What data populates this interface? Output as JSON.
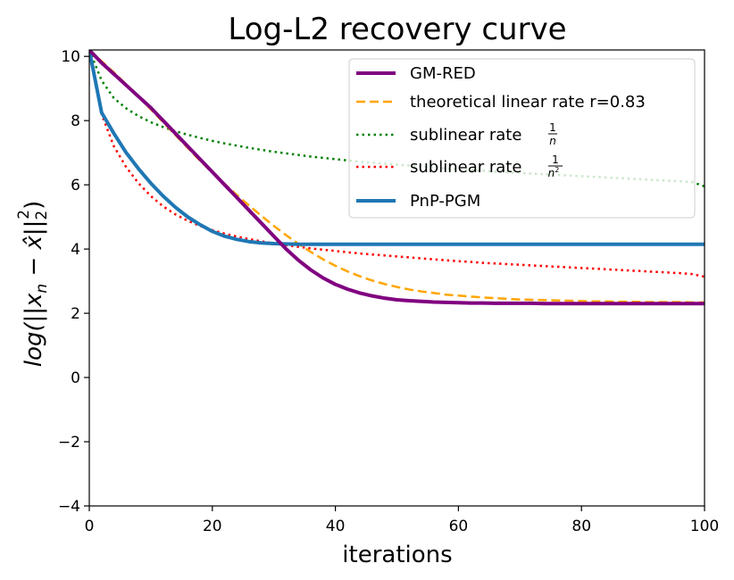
{
  "chart_data": {
    "type": "line",
    "title": "Log-L2 recovery curve",
    "xlabel": "iterations",
    "ylabel_main": "log(||x",
    "ylabel_sub_n": "n",
    "ylabel_mid": " − x̂||",
    "ylabel_sub_2": "2",
    "ylabel_sup_2": "2",
    "ylabel_close": ")",
    "xlim": [
      0,
      100
    ],
    "ylim": [
      -4,
      10.2
    ],
    "xticks": [
      0,
      20,
      40,
      60,
      80,
      100
    ],
    "xtick_labels": [
      "0",
      "20",
      "40",
      "60",
      "80",
      "100"
    ],
    "yticks": [
      -4,
      -2,
      0,
      2,
      4,
      6,
      8,
      10
    ],
    "ytick_labels": [
      "−4",
      "−2",
      "0",
      "2",
      "4",
      "6",
      "8",
      "10"
    ],
    "grid": false,
    "legend_position": "top-right",
    "x": [
      0,
      2,
      4,
      6,
      8,
      10,
      12,
      14,
      16,
      18,
      20,
      22,
      24,
      26,
      28,
      30,
      32,
      34,
      36,
      38,
      40,
      42,
      44,
      46,
      48,
      50,
      52,
      54,
      56,
      58,
      60,
      62,
      64,
      66,
      68,
      70,
      72,
      74,
      76,
      78,
      80,
      82,
      84,
      86,
      88,
      90,
      92,
      94,
      96,
      98,
      100
    ],
    "series": [
      {
        "name": "GM-RED",
        "color": "#800080",
        "style": "solid",
        "values": [
          10.2,
          9.8,
          9.45,
          9.1,
          8.75,
          8.4,
          8.0,
          7.6,
          7.2,
          6.8,
          6.4,
          6.0,
          5.6,
          5.2,
          4.8,
          4.4,
          4.0,
          3.65,
          3.35,
          3.1,
          2.9,
          2.75,
          2.63,
          2.54,
          2.47,
          2.42,
          2.39,
          2.37,
          2.35,
          2.34,
          2.33,
          2.32,
          2.32,
          2.31,
          2.31,
          2.31,
          2.31,
          2.3,
          2.3,
          2.3,
          2.3,
          2.3,
          2.3,
          2.3,
          2.3,
          2.3,
          2.3,
          2.3,
          2.3,
          2.3,
          2.3
        ]
      },
      {
        "name": "theoretical linear rate r=0.83",
        "label_main": "theoretical linear rate r=0.83",
        "color": "#ffa500",
        "style": "dashed",
        "values": [
          10.2,
          9.85,
          9.5,
          9.13,
          8.75,
          8.35,
          7.95,
          7.55,
          7.15,
          6.75,
          6.38,
          6.03,
          5.68,
          5.35,
          5.03,
          4.72,
          4.43,
          4.16,
          3.91,
          3.68,
          3.48,
          3.3,
          3.15,
          3.02,
          2.91,
          2.82,
          2.74,
          2.68,
          2.63,
          2.58,
          2.55,
          2.52,
          2.49,
          2.47,
          2.45,
          2.43,
          2.42,
          2.41,
          2.4,
          2.39,
          2.38,
          2.37,
          2.37,
          2.36,
          2.36,
          2.35,
          2.35,
          2.35,
          2.35,
          2.34,
          2.34
        ]
      },
      {
        "name": "sublinear rate 1/n",
        "label_main": "sublinear rate",
        "label_num": "1",
        "label_den": "n",
        "color": "#008000",
        "style": "dotted",
        "values": [
          10.2,
          9.25,
          8.7,
          8.38,
          8.14,
          7.95,
          7.8,
          7.67,
          7.56,
          7.46,
          7.37,
          7.29,
          7.22,
          7.15,
          7.09,
          7.03,
          6.98,
          6.93,
          6.88,
          6.84,
          6.8,
          6.76,
          6.72,
          6.69,
          6.66,
          6.63,
          6.6,
          6.57,
          6.54,
          6.51,
          6.48,
          6.46,
          6.44,
          6.41,
          6.39,
          6.37,
          6.35,
          6.33,
          6.31,
          6.29,
          6.27,
          6.25,
          6.23,
          6.21,
          6.19,
          6.17,
          6.15,
          6.13,
          6.11,
          6.09,
          5.95
        ]
      },
      {
        "name": "sublinear rate 1/n^2",
        "label_main": "sublinear rate",
        "label_num": "1",
        "label_den": "n",
        "label_den_sup": "2",
        "color": "#ff0000",
        "style": "dotted",
        "values": [
          10.2,
          8.2,
          7.2,
          6.55,
          6.05,
          5.65,
          5.33,
          5.08,
          4.88,
          4.72,
          4.59,
          4.48,
          4.39,
          4.31,
          4.24,
          4.18,
          4.12,
          4.07,
          4.02,
          3.98,
          3.94,
          3.9,
          3.86,
          3.83,
          3.8,
          3.77,
          3.74,
          3.71,
          3.68,
          3.65,
          3.62,
          3.6,
          3.57,
          3.55,
          3.53,
          3.51,
          3.49,
          3.47,
          3.45,
          3.43,
          3.41,
          3.39,
          3.37,
          3.35,
          3.33,
          3.31,
          3.29,
          3.27,
          3.25,
          3.22,
          3.14
        ]
      },
      {
        "name": "PnP-PGM",
        "color": "#1f77b4",
        "style": "solid",
        "values": [
          10.2,
          8.25,
          7.6,
          7.0,
          6.5,
          6.05,
          5.65,
          5.3,
          5.0,
          4.76,
          4.55,
          4.4,
          4.3,
          4.23,
          4.19,
          4.17,
          4.16,
          4.15,
          4.15,
          4.15,
          4.15,
          4.15,
          4.15,
          4.15,
          4.15,
          4.15,
          4.15,
          4.15,
          4.15,
          4.15,
          4.15,
          4.15,
          4.15,
          4.15,
          4.15,
          4.15,
          4.15,
          4.15,
          4.15,
          4.15,
          4.15,
          4.15,
          4.15,
          4.15,
          4.15,
          4.15,
          4.15,
          4.15,
          4.15,
          4.15,
          4.15
        ]
      }
    ]
  }
}
